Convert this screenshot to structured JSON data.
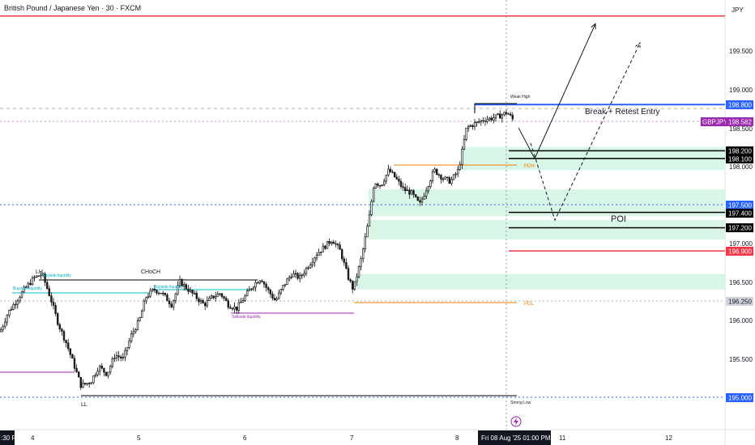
{
  "header": {
    "title": "British Pound / Japanese Yen · 30 · FXCM",
    "currency": "JPY"
  },
  "price_axis": {
    "ticks": [
      "199.500",
      "199.000",
      "198.500",
      "198.000",
      "197.000",
      "196.500",
      "196.000",
      "195.500"
    ]
  },
  "price_tags": [
    {
      "text": "198.800",
      "price": 198.8,
      "bg": "#2962ff",
      "fg": "#ffffff"
    },
    {
      "text": "GBPJPY",
      "price": 198.582,
      "bg": "#9c27b0",
      "fg": "#ffffff"
    },
    {
      "text": "198.582",
      "price": 198.582,
      "bg": "#9c27b0",
      "fg": "#ffffff"
    },
    {
      "text": "198.200",
      "price": 198.2,
      "bg": "#000000",
      "fg": "#ffffff"
    },
    {
      "text": "198.100",
      "price": 198.1,
      "bg": "#000000",
      "fg": "#ffffff"
    },
    {
      "text": "197.500",
      "price": 197.5,
      "bg": "#2962ff",
      "fg": "#ffffff"
    },
    {
      "text": "197.400",
      "price": 197.4,
      "bg": "#000000",
      "fg": "#ffffff"
    },
    {
      "text": "197.200",
      "price": 197.2,
      "bg": "#000000",
      "fg": "#ffffff"
    },
    {
      "text": "196.900",
      "price": 196.9,
      "bg": "#f23645",
      "fg": "#ffffff"
    },
    {
      "text": "196.250",
      "price": 196.25,
      "bg": "#d1d4dc",
      "fg": "#131722"
    },
    {
      "text": "195.000",
      "price": 195.0,
      "bg": "#2962ff",
      "fg": "#ffffff"
    }
  ],
  "time_axis": {
    "ticks": [
      ":30 PM",
      "4",
      "5",
      "6",
      "7",
      "8",
      "11",
      "12"
    ],
    "current_label": "Fri 08 Aug '25   01:00 PM"
  },
  "annotations": {
    "lh": "LH",
    "ll": "LL",
    "choch": "CHoCH",
    "buyside1": "Buyside liquidity",
    "buyside2": "Buyside liquidity",
    "buyside3": "Buyside liquidity",
    "sellside": "Sellside liquidity",
    "weak_high": "Weak High",
    "strong_low": "Strong Low",
    "pdh": "PDH",
    "pdl": "PDL",
    "break_retest": "Break + Retest Entry",
    "poi": "POI"
  },
  "colors": {
    "bull": "#26a69a",
    "bear": "#000000",
    "candle": "#000000",
    "candle_bear": "#1a1a1a",
    "purple": "#9c27b0",
    "red": "#f23645",
    "blue": "#2962ff",
    "orange": "#f57c00",
    "zone": "#c8f2dc"
  },
  "chart_data": {
    "type": "candlestick",
    "symbol": "GBPJPY",
    "timeframe": "30",
    "ylim": [
      194.75,
      200.0
    ],
    "x_ticks": [
      "4",
      "5",
      "6",
      "7",
      "8",
      "11",
      "12"
    ],
    "path": [
      [
        0,
        195.85
      ],
      [
        10,
        196.1
      ],
      [
        20,
        196.25
      ],
      [
        30,
        196.4
      ],
      [
        42,
        196.55
      ],
      [
        52,
        196.6
      ],
      [
        62,
        196.3
      ],
      [
        72,
        195.95
      ],
      [
        82,
        195.7
      ],
      [
        92,
        195.4
      ],
      [
        100,
        195.15
      ],
      [
        112,
        195.2
      ],
      [
        122,
        195.4
      ],
      [
        132,
        195.3
      ],
      [
        142,
        195.55
      ],
      [
        152,
        195.5
      ],
      [
        162,
        195.8
      ],
      [
        172,
        196.0
      ],
      [
        180,
        196.3
      ],
      [
        190,
        196.4
      ],
      [
        200,
        196.35
      ],
      [
        212,
        196.2
      ],
      [
        222,
        196.5
      ],
      [
        232,
        196.4
      ],
      [
        242,
        196.3
      ],
      [
        252,
        196.2
      ],
      [
        262,
        196.3
      ],
      [
        272,
        196.35
      ],
      [
        282,
        196.2
      ],
      [
        292,
        196.15
      ],
      [
        302,
        196.3
      ],
      [
        312,
        196.45
      ],
      [
        322,
        196.55
      ],
      [
        330,
        196.4
      ],
      [
        340,
        196.25
      ],
      [
        350,
        196.45
      ],
      [
        360,
        196.6
      ],
      [
        370,
        196.55
      ],
      [
        380,
        196.7
      ],
      [
        390,
        196.85
      ],
      [
        400,
        196.95
      ],
      [
        410,
        197.05
      ],
      [
        420,
        196.9
      ],
      [
        430,
        196.55
      ],
      [
        436,
        196.4
      ],
      [
        446,
        196.8
      ],
      [
        456,
        197.35
      ],
      [
        462,
        197.8
      ],
      [
        470,
        197.75
      ],
      [
        480,
        197.95
      ],
      [
        488,
        197.85
      ],
      [
        498,
        197.7
      ],
      [
        508,
        197.65
      ],
      [
        518,
        197.5
      ],
      [
        526,
        197.7
      ],
      [
        536,
        197.95
      ],
      [
        546,
        197.85
      ],
      [
        556,
        197.8
      ],
      [
        566,
        197.95
      ],
      [
        576,
        198.5
      ],
      [
        586,
        198.55
      ],
      [
        596,
        198.6
      ],
      [
        606,
        198.62
      ],
      [
        616,
        198.65
      ],
      [
        626,
        198.7
      ],
      [
        635,
        198.58
      ]
    ],
    "lines": [
      {
        "price": 199.95,
        "color": "#f23645",
        "name": "top-resistance"
      },
      {
        "price": 198.8,
        "color": "#2962ff",
        "name": "weak-high"
      },
      {
        "price": 198.2,
        "color": "#000000",
        "name": "zone-1-top"
      },
      {
        "price": 198.1,
        "color": "#000000",
        "name": "zone-1-bottom"
      },
      {
        "price": 197.4,
        "color": "#000000",
        "name": "poi-top"
      },
      {
        "price": 197.2,
        "color": "#000000",
        "name": "poi-bottom"
      },
      {
        "price": 196.9,
        "color": "#f23645",
        "name": "red-level"
      }
    ],
    "zones": [
      {
        "from": 198.25,
        "to": 197.95
      },
      {
        "from": 197.7,
        "to": 197.35
      },
      {
        "from": 197.3,
        "to": 197.05
      },
      {
        "from": 196.6,
        "to": 196.4
      }
    ],
    "projection_solid": [
      [
        640,
        198.5
      ],
      [
        660,
        198.1
      ],
      [
        735,
        199.85
      ]
    ],
    "projection_dashed": [
      [
        655,
        198.3
      ],
      [
        685,
        197.3
      ],
      [
        790,
        199.6
      ]
    ]
  }
}
